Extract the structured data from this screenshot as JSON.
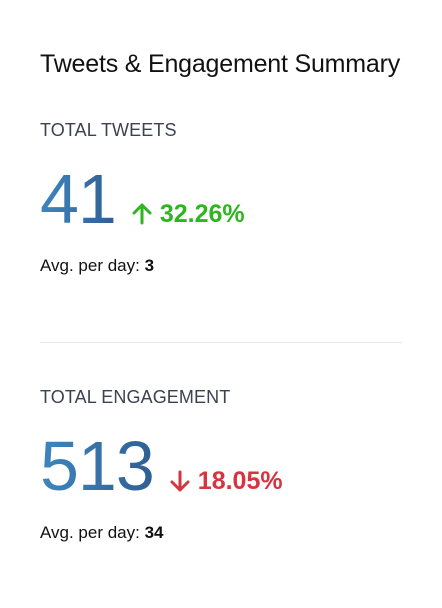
{
  "title": "Tweets & Engagement Summary",
  "colors": {
    "value_gradient_start": "#3e86be",
    "value_gradient_end": "#2f5f92",
    "delta_up": "#2fb51f",
    "delta_down": "#d6353f"
  },
  "tweets": {
    "label": "TOTAL TWEETS",
    "value": "41",
    "delta_direction": "up",
    "delta_icon": "arrow-up-icon",
    "delta": "32.26%",
    "avg_label": "Avg. per day:",
    "avg_value": "3"
  },
  "engagement": {
    "label": "TOTAL ENGAGEMENT",
    "value": "513",
    "delta_direction": "down",
    "delta_icon": "arrow-down-icon",
    "delta": "18.05%",
    "avg_label": "Avg. per day:",
    "avg_value": "34"
  }
}
